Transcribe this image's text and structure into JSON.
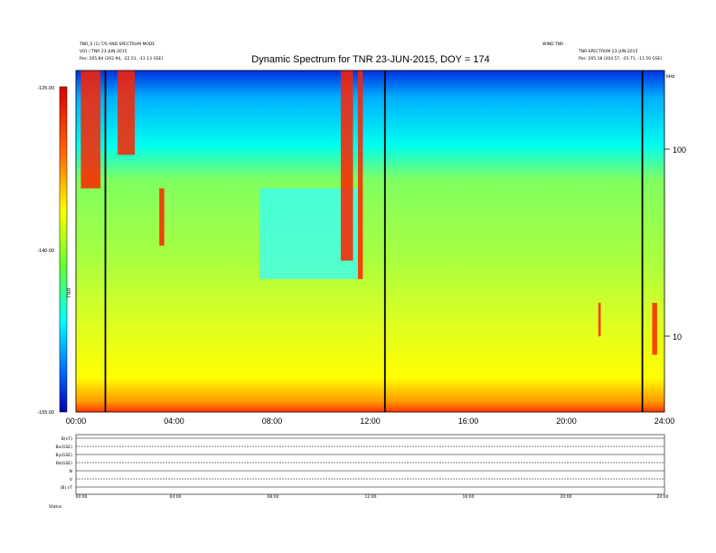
{
  "chart_data": {
    "type": "heatmap",
    "title": "Dynamic Spectrum for TNR 23-JUN-2015, DOY = 174",
    "header_left": [
      "TNR_S (1) T/S AND SPECTRUM MODE",
      "V01 / TNR 23-JUN-2015",
      "Pos:   205.84 (202.94, -22.51, -11.13 GSE)"
    ],
    "header_right": [
      "WIND TNR",
      "TNR-SPECTRUM 23-JUN-2015",
      "Pos:   205.18 (204.57, -25.71, -11.50 GSE)"
    ],
    "colorbar": {
      "label": "TNR",
      "ticks": [
        "-125.00",
        "-140.00",
        "-155.00"
      ],
      "range": [
        -155,
        -125
      ]
    },
    "y_axis": {
      "scale": "log",
      "ticks": [
        "100",
        "10"
      ],
      "label": "kHz",
      "range_khz": [
        4,
        250
      ]
    },
    "x_axis": {
      "ticks": [
        "00:00",
        "04:00",
        "08:00",
        "12:00",
        "16:00",
        "20:00",
        "24:00"
      ],
      "range_hours": [
        0,
        24
      ]
    },
    "vertical_markers_hours": [
      1.2,
      12.6,
      23.1
    ],
    "intense_bursts": [
      {
        "start": 0.2,
        "end": 1.0,
        "low_khz": 60,
        "high_khz": 250
      },
      {
        "start": 1.7,
        "end": 2.4,
        "low_khz": 90,
        "high_khz": 250
      },
      {
        "start": 3.4,
        "end": 3.6,
        "low_khz": 30,
        "high_khz": 60
      },
      {
        "start": 10.8,
        "end": 11.3,
        "low_khz": 25,
        "high_khz": 250
      },
      {
        "start": 11.5,
        "end": 11.7,
        "low_khz": 20,
        "high_khz": 250
      },
      {
        "start": 21.3,
        "end": 21.4,
        "low_khz": 10,
        "high_khz": 15
      },
      {
        "start": 23.5,
        "end": 23.7,
        "low_khz": 8,
        "high_khz": 15
      }
    ],
    "quiet_region": {
      "start": 7.5,
      "end": 11.5,
      "low_khz": 20,
      "high_khz": 60
    },
    "bottom_panels": {
      "labels": [
        "B(nT)",
        "Bx(GSE)",
        "By(GSE)",
        "Bz(GSE)",
        "N",
        "V",
        "|B| nT"
      ],
      "x_ticks": [
        "00:00",
        "04:00",
        "08:00",
        "12:00",
        "16:00",
        "20:00",
        "24:00"
      ],
      "footer": "Status"
    }
  }
}
